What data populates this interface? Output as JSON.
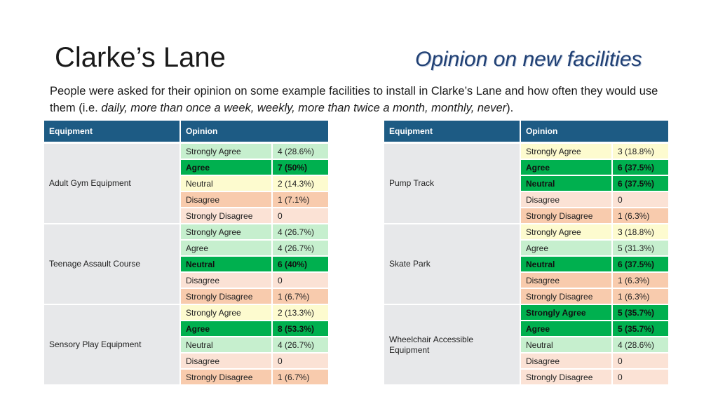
{
  "header": {
    "title": "Clarke’s Lane",
    "subtitle": "Opinion on new facilities"
  },
  "intro": {
    "prefix": "People were asked for their opinion on some example facilities to install in Clarke’s Lane and how often they would use them (i.e. ",
    "frequencies": "daily, more than once a week, weekly, more than twice a month, monthly, never",
    "suffix": ")."
  },
  "colors": {
    "header_bg": "#1d5b84",
    "equipment_bg": "#e7e8ea",
    "pale_yellow": "#fdfbcf",
    "light_green": "#c6efce",
    "dark_green": "#00b04f",
    "peach": "#fbe2d5",
    "salmon": "#f8cbad"
  },
  "tables": [
    {
      "headers": {
        "equipment": "Equipment",
        "opinion": "Opinion"
      },
      "groups": [
        {
          "equipment": "Adult Gym Equipment",
          "rows": [
            {
              "opinion": "Strongly Agree",
              "value": "4 (28.6%)",
              "color": "light_green"
            },
            {
              "opinion": "Agree",
              "value": "7 (50%)",
              "color": "dark_green"
            },
            {
              "opinion": "Neutral",
              "value": "2 (14.3%)",
              "color": "pale_yellow"
            },
            {
              "opinion": "Disagree",
              "value": "1 (7.1%)",
              "color": "salmon"
            },
            {
              "opinion": "Strongly Disagree",
              "value": "0",
              "color": "peach"
            }
          ]
        },
        {
          "equipment": "Teenage Assault Course",
          "rows": [
            {
              "opinion": "Strongly Agree",
              "value": "4 (26.7%)",
              "color": "light_green"
            },
            {
              "opinion": "Agree",
              "value": "4 (26.7%)",
              "color": "light_green"
            },
            {
              "opinion": "Neutral",
              "value": "6 (40%)",
              "color": "dark_green"
            },
            {
              "opinion": "Disagree",
              "value": "0",
              "color": "peach"
            },
            {
              "opinion": "Strongly Disagree",
              "value": "1 (6.7%)",
              "color": "salmon"
            }
          ]
        },
        {
          "equipment": "Sensory Play Equipment",
          "rows": [
            {
              "opinion": "Strongly Agree",
              "value": "2 (13.3%)",
              "color": "pale_yellow"
            },
            {
              "opinion": "Agree",
              "value": "8 (53.3%)",
              "color": "dark_green"
            },
            {
              "opinion": "Neutral",
              "value": "4 (26.7%)",
              "color": "light_green"
            },
            {
              "opinion": "Disagree",
              "value": "0",
              "color": "peach"
            },
            {
              "opinion": "Strongly Disagree",
              "value": "1 (6.7%)",
              "color": "salmon"
            }
          ]
        }
      ]
    },
    {
      "headers": {
        "equipment": "Equipment",
        "opinion": "Opinion"
      },
      "groups": [
        {
          "equipment": "Pump Track",
          "rows": [
            {
              "opinion": "Strongly Agree",
              "value": "3 (18.8%)",
              "color": "pale_yellow"
            },
            {
              "opinion": "Agree",
              "value": "6 (37.5%)",
              "color": "dark_green"
            },
            {
              "opinion": "Neutral",
              "value": "6 (37.5%)",
              "color": "dark_green"
            },
            {
              "opinion": "Disagree",
              "value": "0",
              "color": "peach"
            },
            {
              "opinion": "Strongly Disagree",
              "value": "1 (6.3%)",
              "color": "salmon"
            }
          ]
        },
        {
          "equipment": "Skate Park",
          "rows": [
            {
              "opinion": "Strongly Agree",
              "value": "3 (18.8%)",
              "color": "pale_yellow"
            },
            {
              "opinion": "Agree",
              "value": "5 (31.3%)",
              "color": "light_green"
            },
            {
              "opinion": "Neutral",
              "value": "6 (37.5%)",
              "color": "dark_green"
            },
            {
              "opinion": "Disagree",
              "value": "1 (6.3%)",
              "color": "salmon"
            },
            {
              "opinion": "Strongly Disagree",
              "value": "1 (6.3%)",
              "color": "salmon"
            }
          ]
        },
        {
          "equipment": "Wheelchair Accessible Equipment",
          "rows": [
            {
              "opinion": "Strongly Agree",
              "value": "5 (35.7%)",
              "color": "dark_green"
            },
            {
              "opinion": "Agree",
              "value": "5 (35.7%)",
              "color": "dark_green"
            },
            {
              "opinion": "Neutral",
              "value": "4 (28.6%)",
              "color": "light_green"
            },
            {
              "opinion": "Disagree",
              "value": "0",
              "color": "peach"
            },
            {
              "opinion": "Strongly Disagree",
              "value": "0",
              "color": "peach"
            }
          ]
        }
      ]
    }
  ]
}
